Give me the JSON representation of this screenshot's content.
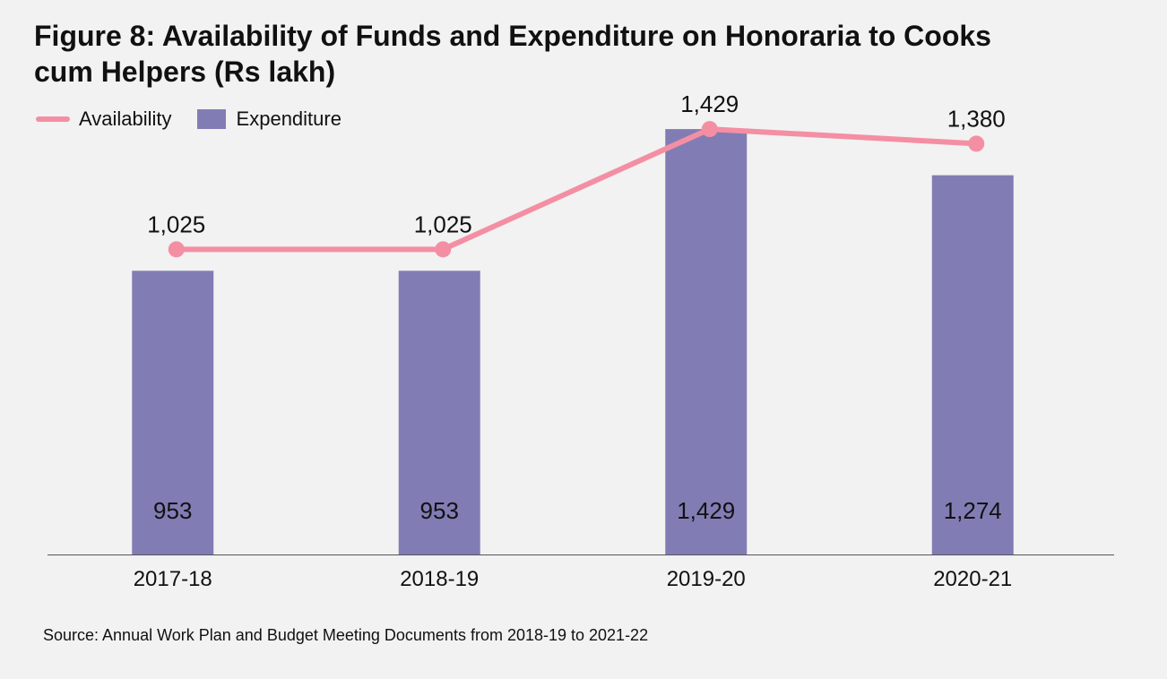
{
  "colors": {
    "availability": "#f48fa3",
    "expenditure": "#817db4",
    "axis": "#555555",
    "background": "#f2f2f2"
  },
  "chart_data": {
    "type": "bar",
    "title": "Figure 8: Availability of Funds and Expenditure on Honoraria to Cooks cum Helpers (Rs lakh)",
    "categories": [
      "2017-18",
      "2018-19",
      "2019-20",
      "2020-21"
    ],
    "series": [
      {
        "name": "Expenditure",
        "type": "bar",
        "values": [
          953,
          953,
          1429,
          1274
        ],
        "labels": [
          "953",
          "953",
          "1,429",
          "1,274"
        ]
      },
      {
        "name": "Availability",
        "type": "line",
        "values": [
          1025,
          1025,
          1429,
          1380
        ],
        "labels": [
          "1,025",
          "1,025",
          "1,429",
          "1,380"
        ]
      }
    ],
    "ylim": [
      0,
      1500
    ],
    "xlabel": "",
    "ylabel": "",
    "grid": false,
    "legend_position": "top-left",
    "source": "Source: Annual Work Plan and Budget Meeting Documents from 2018-19 to 2021-22"
  }
}
